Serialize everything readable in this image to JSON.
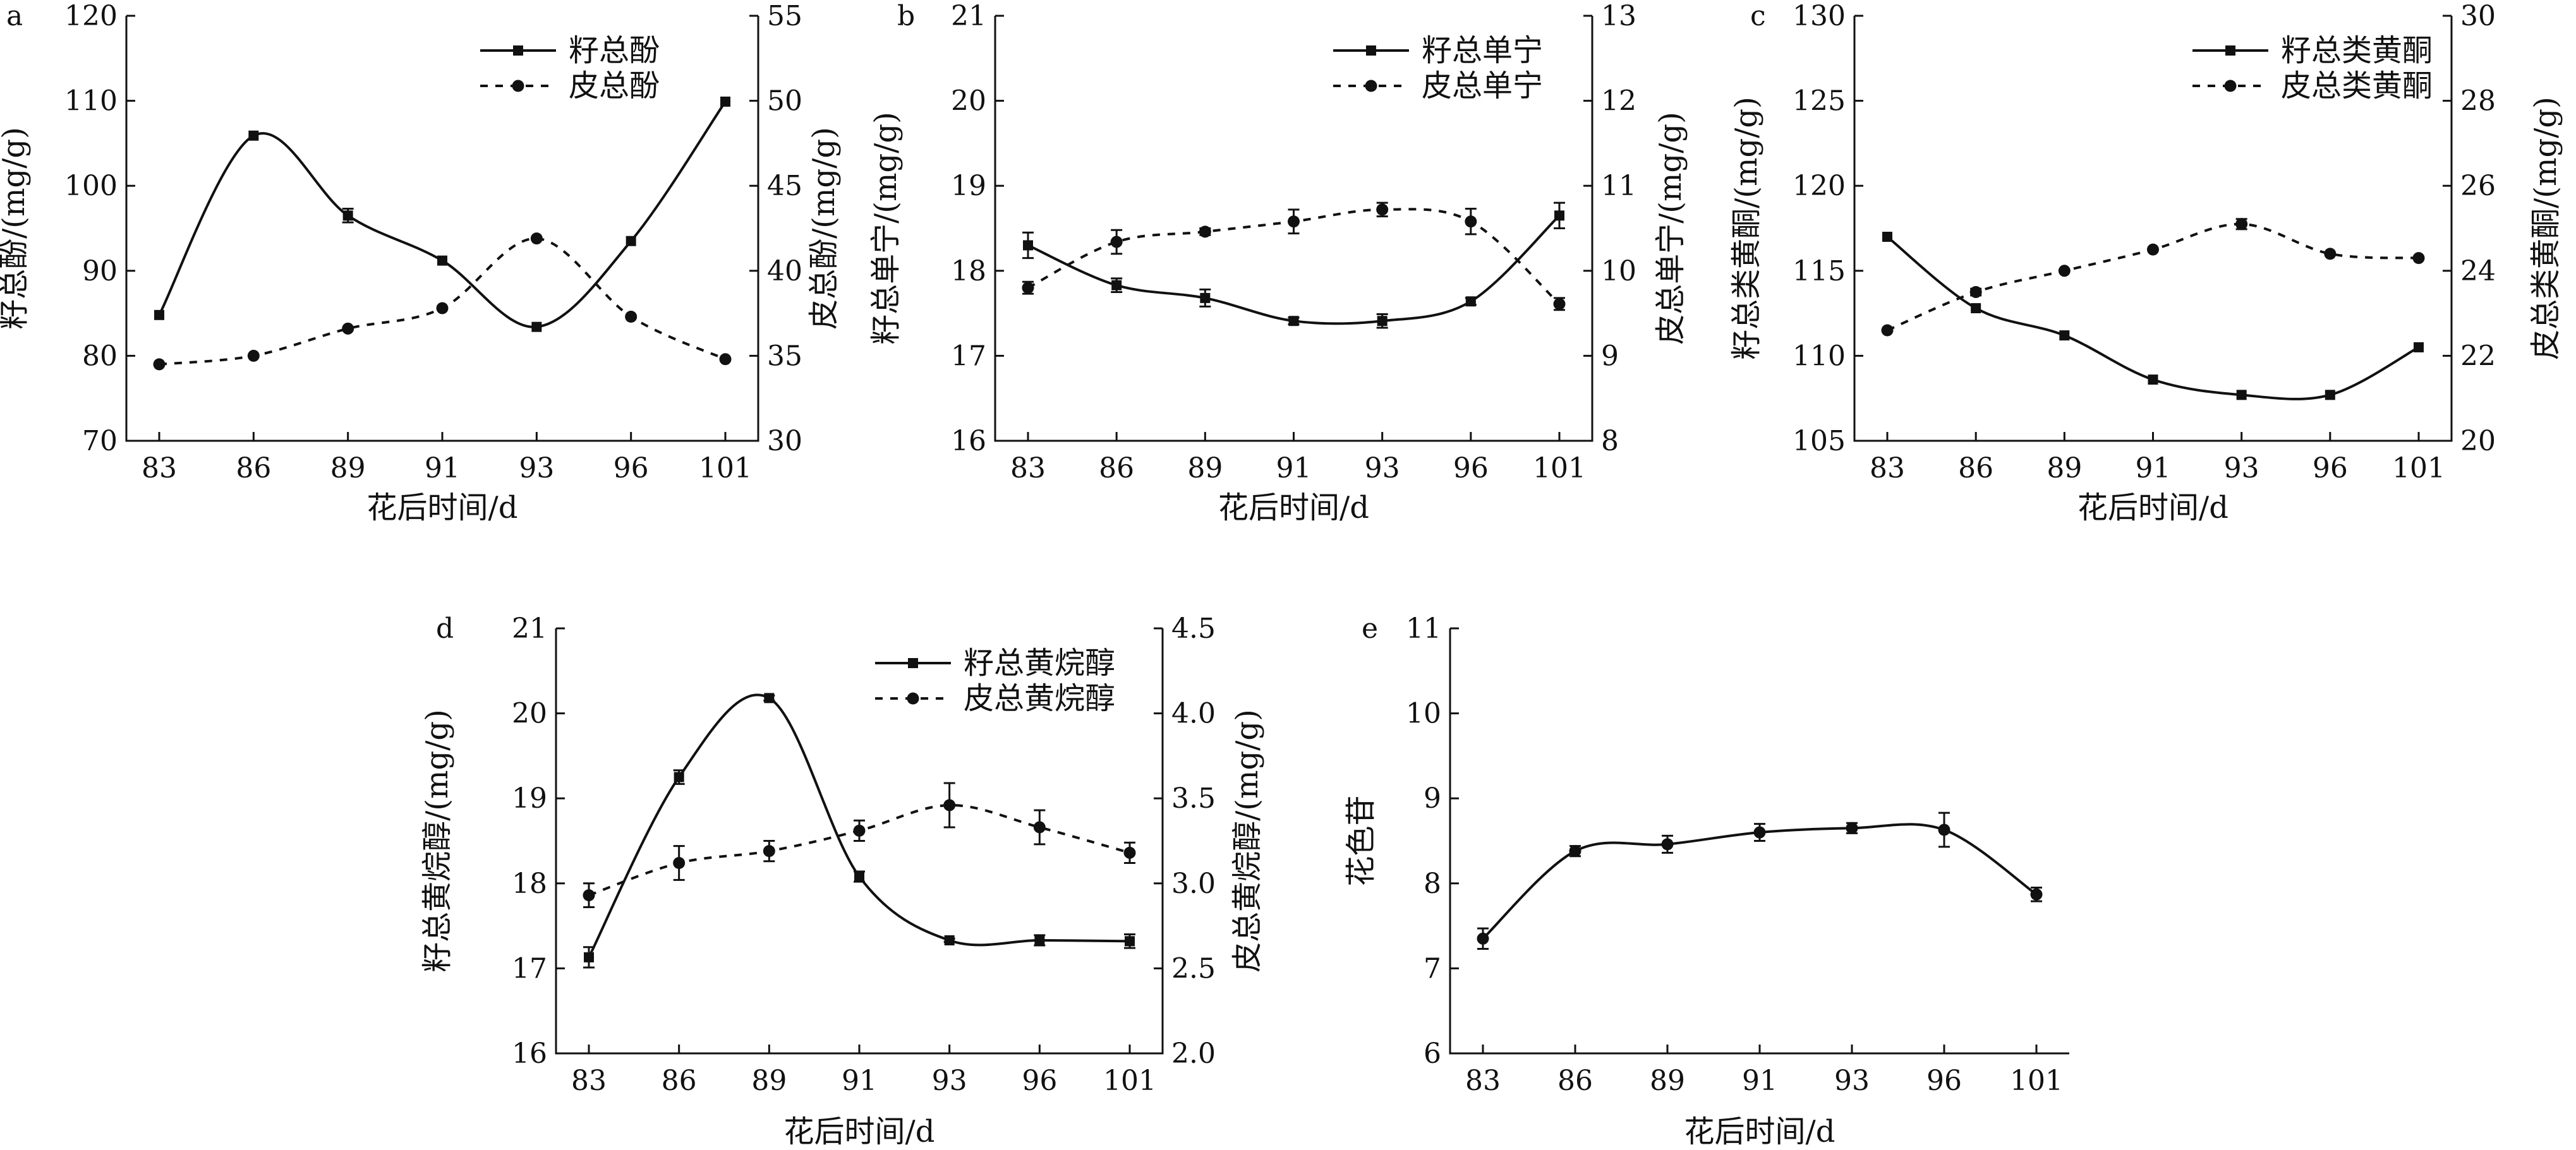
{
  "chart_data": [
    {
      "panel": "a",
      "type": "line",
      "x": [
        "83",
        "86",
        "89",
        "91",
        "93",
        "96",
        "101"
      ],
      "xlabel": "花后时间/d",
      "ylabel": "籽总酚/(mg/g)",
      "ylabel2": "皮总酚/(mg/g)",
      "ylim": [
        70,
        120
      ],
      "yticks": [
        "70",
        "80",
        "90",
        "100",
        "110",
        "120"
      ],
      "ylim2": [
        30,
        55
      ],
      "yticks2": [
        "30",
        "35",
        "40",
        "45",
        "50",
        "55"
      ],
      "series": [
        {
          "name": "籽总酚",
          "axis": "left",
          "marker": "square",
          "style": "solid",
          "values": [
            84.8,
            105.9,
            96.5,
            91.2,
            83.4,
            93.5,
            109.9
          ],
          "errors": [
            0,
            0,
            0.8,
            0,
            0,
            0,
            0
          ]
        },
        {
          "name": "皮总酚",
          "axis": "right",
          "marker": "circle",
          "style": "dashed",
          "values": [
            34.5,
            35.0,
            36.6,
            37.8,
            41.9,
            37.3,
            34.8
          ],
          "errors": [
            0,
            0,
            0,
            0,
            0,
            0,
            0
          ]
        }
      ]
    },
    {
      "panel": "b",
      "type": "line",
      "x": [
        "83",
        "86",
        "89",
        "91",
        "93",
        "96",
        "101"
      ],
      "xlabel": "花后时间/d",
      "ylabel": "籽总单宁/(mg/g)",
      "ylabel2": "皮总单宁/(mg/g)",
      "ylim": [
        16,
        21
      ],
      "yticks": [
        "16",
        "17",
        "18",
        "19",
        "20",
        "21"
      ],
      "ylim2": [
        8,
        13
      ],
      "yticks2": [
        "8",
        "9",
        "10",
        "11",
        "12",
        "13"
      ],
      "series": [
        {
          "name": "籽总单宁",
          "axis": "left",
          "marker": "square",
          "style": "solid",
          "values": [
            18.3,
            17.83,
            17.68,
            17.41,
            17.41,
            17.64,
            18.65
          ],
          "errors": [
            0.15,
            0.08,
            0.1,
            0.04,
            0.08,
            0.04,
            0.15
          ]
        },
        {
          "name": "皮总单宁",
          "axis": "right",
          "marker": "circle",
          "style": "dashed",
          "values": [
            9.8,
            10.34,
            10.46,
            10.58,
            10.72,
            10.58,
            9.61
          ],
          "errors": [
            0.07,
            0.14,
            0.04,
            0.14,
            0.08,
            0.15,
            0.07
          ]
        }
      ]
    },
    {
      "panel": "c",
      "type": "line",
      "x": [
        "83",
        "86",
        "89",
        "91",
        "93",
        "96",
        "101"
      ],
      "xlabel": "花后时间/d",
      "ylabel": "籽总类黄酮/(mg/g)",
      "ylabel2": "皮总类黄酮/(mg/g)",
      "ylim": [
        105,
        130
      ],
      "yticks": [
        "105",
        "110",
        "115",
        "120",
        "125",
        "130"
      ],
      "ylim2": [
        20,
        30
      ],
      "yticks2": [
        "20",
        "22",
        "24",
        "26",
        "28",
        "30"
      ],
      "series": [
        {
          "name": "籽总类黄酮",
          "axis": "left",
          "marker": "square",
          "style": "solid",
          "values": [
            117.0,
            112.8,
            111.2,
            108.6,
            107.7,
            107.7,
            110.5
          ],
          "errors": [
            0,
            0,
            0,
            0,
            0,
            0,
            0
          ]
        },
        {
          "name": "皮总类黄酮",
          "axis": "right",
          "marker": "circle",
          "style": "dashed",
          "values": [
            22.6,
            23.5,
            24.0,
            24.5,
            25.1,
            24.4,
            24.3
          ],
          "errors": [
            0,
            0.08,
            0,
            0,
            0.12,
            0,
            0
          ]
        }
      ]
    },
    {
      "panel": "d",
      "type": "line",
      "x": [
        "83",
        "86",
        "89",
        "91",
        "93",
        "96",
        "101"
      ],
      "xlabel": "花后时间/d",
      "ylabel": "籽总黄烷醇/(mg/g)",
      "ylabel2": "皮总黄烷醇/(mg/g)",
      "ylim": [
        16,
        21
      ],
      "yticks": [
        "16",
        "17",
        "18",
        "19",
        "20",
        "21"
      ],
      "ylim2": [
        2.0,
        4.5
      ],
      "yticks2": [
        "2.0",
        "2.5",
        "3.0",
        "3.5",
        "4.0",
        "4.5"
      ],
      "series": [
        {
          "name": "籽总黄烷醇",
          "axis": "left",
          "marker": "square",
          "style": "solid",
          "values": [
            17.13,
            19.25,
            20.18,
            18.08,
            17.33,
            17.33,
            17.32
          ],
          "errors": [
            0.12,
            0.08,
            0.03,
            0.06,
            0.02,
            0.06,
            0.08
          ]
        },
        {
          "name": "皮总黄烷醇",
          "axis": "right",
          "marker": "circle",
          "style": "dashed",
          "values": [
            2.93,
            3.12,
            3.19,
            3.31,
            3.46,
            3.33,
            3.18
          ],
          "errors": [
            0.07,
            0.1,
            0.06,
            0.06,
            0.13,
            0.1,
            0.06
          ]
        }
      ]
    },
    {
      "panel": "e",
      "type": "line",
      "x": [
        "83",
        "86",
        "89",
        "91",
        "93",
        "96",
        "101"
      ],
      "xlabel": "花后时间/d",
      "ylabel": "花色苷",
      "ylim": [
        6,
        11
      ],
      "yticks": [
        "6",
        "7",
        "8",
        "9",
        "10",
        "11"
      ],
      "series": [
        {
          "name": "花色苷",
          "axis": "left",
          "marker": "circle",
          "style": "solid",
          "values": [
            7.35,
            8.38,
            8.46,
            8.6,
            8.65,
            8.63,
            7.87
          ],
          "errors": [
            0.12,
            0.06,
            0.1,
            0.1,
            0.06,
            0.2,
            0.08
          ]
        }
      ]
    }
  ]
}
